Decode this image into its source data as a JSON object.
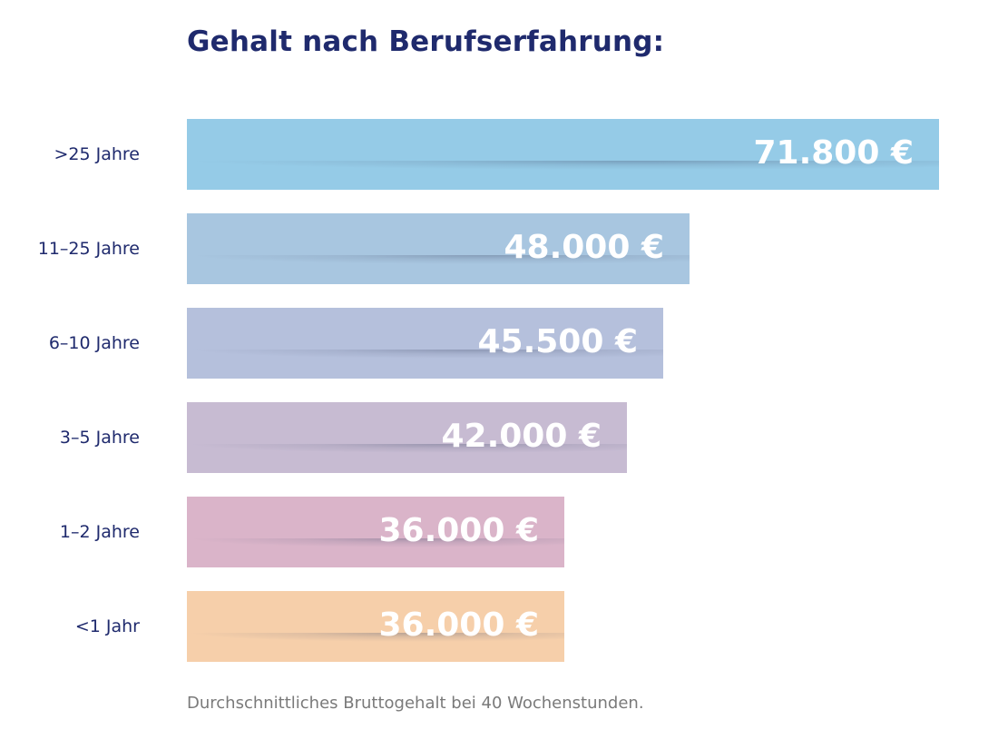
{
  "title": "Gehalt nach Berufserfahrung:",
  "footnote": "Durchschnittliches Bruttogehalt bei 40 Wochenstunden.",
  "chart_data": {
    "type": "bar",
    "orientation": "horizontal",
    "title": "Gehalt nach Berufserfahrung:",
    "categories": [
      ">25 Jahre",
      "11–25 Jahre",
      "6–10 Jahre",
      "3–5 Jahre",
      "1–2 Jahre",
      "<1 Jahr"
    ],
    "values": [
      71800,
      48000,
      45500,
      42000,
      36000,
      36000
    ],
    "value_labels": [
      "71.800 €",
      "48.000 €",
      "45.500 €",
      "42.000 €",
      "36.000 €",
      "36.000 €"
    ],
    "colors": [
      "#95cbe7",
      "#a8c6e0",
      "#b5c0dc",
      "#c7bbd2",
      "#dab4c9",
      "#f6cfaa"
    ],
    "xlabel": "",
    "ylabel": "",
    "grid": false,
    "legend": "none"
  }
}
